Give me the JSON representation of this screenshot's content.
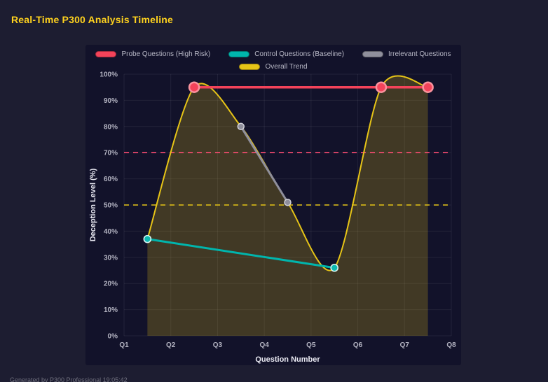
{
  "page": {
    "title": "Real-Time P300 Analysis Timeline",
    "title_color": "#ffd21e",
    "footer": "Generated by P300 Professional  19:05:42"
  },
  "chart_data": {
    "type": "line",
    "title": "Real-Time P300 Analysis Timeline",
    "xlabel": "Question Number",
    "ylabel": "Deception Level (%)",
    "x_ticks": [
      "Q1",
      "Q2",
      "Q3",
      "Q4",
      "Q5",
      "Q6",
      "Q7",
      "Q8"
    ],
    "y_ticks": [
      "0%",
      "10%",
      "20%",
      "30%",
      "40%",
      "50%",
      "60%",
      "70%",
      "80%",
      "90%",
      "100%"
    ],
    "xlim": [
      1,
      8
    ],
    "ylim": [
      0,
      100
    ],
    "grid": true,
    "legend_position": "top-center",
    "area_fill": "rgba(230,196,23,0.22)",
    "background": "#12122a",
    "series": [
      {
        "name": "Probe Questions (High Risk)",
        "color": "#f4435a",
        "width": 3.5,
        "marker": true,
        "marker_r": 7,
        "marker_fill": "#f4435a",
        "marker_stroke": "#f9939e",
        "marker_stroke_width": 2.5,
        "points": [
          [
            2.5,
            95
          ],
          [
            6.5,
            95
          ],
          [
            7.5,
            95
          ]
        ]
      },
      {
        "name": "Control Questions (Baseline)",
        "color": "#00b5ad",
        "width": 3,
        "marker": true,
        "marker_r": 5,
        "marker_fill": "#0fb9b1",
        "marker_stroke": "#d9f6f4",
        "marker_stroke_width": 1.6,
        "points": [
          [
            1.5,
            37
          ],
          [
            5.5,
            26
          ]
        ]
      },
      {
        "name": "Irrelevant Questions",
        "color": "#8f8f9c",
        "width": 3,
        "marker": true,
        "marker_r": 4.5,
        "marker_fill": "#8f8f9c",
        "marker_stroke": "#d2d2da",
        "marker_stroke_width": 1.5,
        "points": [
          [
            3.5,
            80
          ],
          [
            4.5,
            51
          ]
        ]
      },
      {
        "name": "Overall Trend",
        "color": "#e6c417",
        "width": 2,
        "smooth": true,
        "marker": false,
        "points": [
          [
            1.5,
            37
          ],
          [
            2.5,
            95
          ],
          [
            3.5,
            80
          ],
          [
            4.5,
            51
          ],
          [
            5.5,
            26
          ],
          [
            6.5,
            95
          ],
          [
            7.5,
            95
          ]
        ]
      }
    ],
    "reference_lines": [
      {
        "y": 70,
        "color": "#ff4d73",
        "style": "dashed",
        "label": "probe-threshold"
      },
      {
        "y": 50,
        "color": "#e6c417",
        "style": "dashed",
        "label": "midline-threshold"
      }
    ]
  }
}
